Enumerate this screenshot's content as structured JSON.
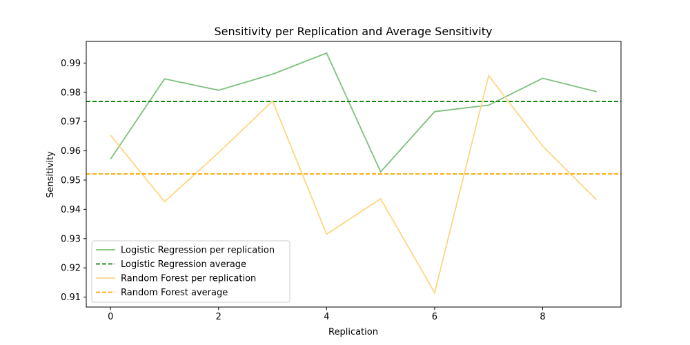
{
  "chart_data": {
    "type": "line",
    "title": "Sensitivity per Replication and Average Sensitivity",
    "xlabel": "Replication",
    "ylabel": "Sensitivity",
    "xlim": [
      -0.45,
      9.45
    ],
    "ylim": [
      0.9066,
      0.9974
    ],
    "xticks": [
      0,
      2,
      4,
      6,
      8
    ],
    "yticks": [
      0.91,
      0.92,
      0.93,
      0.94,
      0.95,
      0.96,
      0.97,
      0.98,
      0.99
    ],
    "x": [
      0,
      1,
      2,
      3,
      4,
      5,
      6,
      7,
      8,
      9
    ],
    "legend_position": "lower-left",
    "grid": false,
    "series": [
      {
        "name": "Logistic Regression per replication",
        "values": [
          0.9572,
          0.9846,
          0.9807,
          0.9862,
          0.9934,
          0.9528,
          0.9734,
          0.9756,
          0.9848,
          0.9802
        ],
        "color": "#7cc07c",
        "style": "solid"
      },
      {
        "name": "Logistic Regression average",
        "average": 0.9769,
        "color": "#008000",
        "style": "dashed"
      },
      {
        "name": "Random Forest per replication",
        "values": [
          0.9653,
          0.9426,
          0.9594,
          0.977,
          0.9315,
          0.9436,
          0.9115,
          0.9857,
          0.9616,
          0.9432
        ],
        "color": "#ffd580",
        "style": "solid"
      },
      {
        "name": "Random Forest average",
        "average": 0.9521,
        "color": "#ffa500",
        "style": "dashed"
      }
    ]
  }
}
